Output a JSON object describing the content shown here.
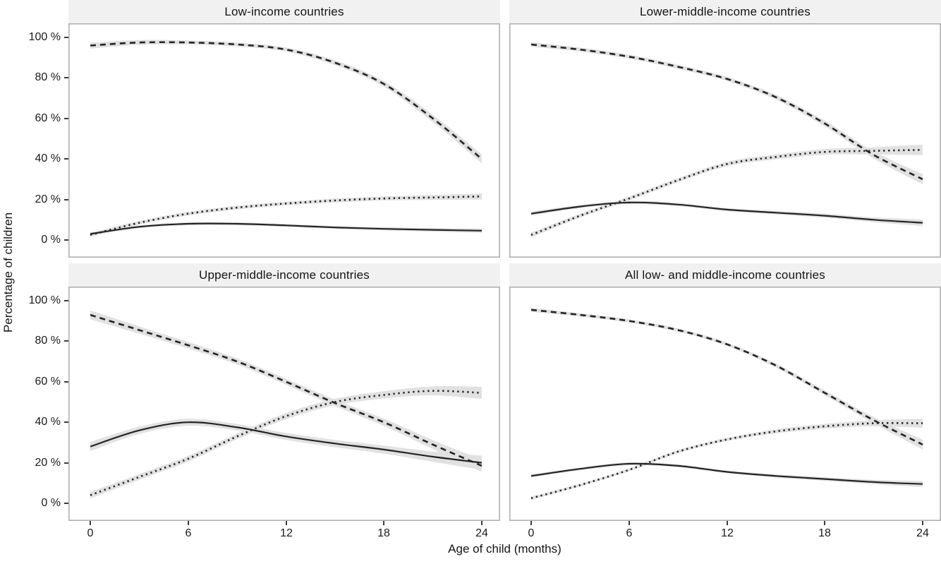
{
  "figure": {
    "y_axis_title": "Percentage of children",
    "x_axis_title": "Age of child (months)",
    "y_tick_labels": [
      "100 %",
      "80 %",
      "60 %",
      "40 %",
      "20 %",
      "0 %"
    ],
    "y_tick_values": [
      100,
      80,
      60,
      40,
      20,
      0
    ],
    "x_tick_labels": [
      "0",
      "6",
      "12",
      "18",
      "24"
    ],
    "x_tick_values": [
      0,
      6,
      12,
      18,
      24
    ]
  },
  "colors": {
    "line": "#242424",
    "confidence_band": "#e1e1e1",
    "strip_background": "#f1f1f1",
    "panel_border": "#b0b0b0",
    "tick": "#3a3a3a"
  },
  "chart_data": [
    {
      "type": "line",
      "title": "Low-income countries",
      "xlabel": "Age of child (months)",
      "ylabel": "Percentage of children",
      "ylim": [
        0,
        100
      ],
      "xlim": [
        0,
        24
      ],
      "grid": "off",
      "legend": "none",
      "x": [
        0,
        3,
        6,
        9,
        12,
        15,
        18,
        21,
        24
      ],
      "series": [
        {
          "name": "dashed-line",
          "style": "dashed",
          "values": [
            96,
            97.5,
            97.5,
            96.5,
            94,
            87.5,
            77,
            60,
            40
          ],
          "ci_halfwidth": [
            1.5,
            1.2,
            1.0,
            1.0,
            1.0,
            1.2,
            1.4,
            1.8,
            2.2
          ]
        },
        {
          "name": "dotted-line",
          "style": "dotted",
          "values": [
            2.5,
            8.5,
            13,
            16,
            18,
            19.5,
            20.5,
            21,
            21.5
          ],
          "ci_halfwidth": [
            1.0,
            0.9,
            0.9,
            0.9,
            0.9,
            1.0,
            1.0,
            1.2,
            1.5
          ]
        },
        {
          "name": "solid-line",
          "style": "solid",
          "values": [
            3,
            6.5,
            8,
            8,
            7.2,
            6.2,
            5.5,
            5,
            4.6
          ],
          "ci_halfwidth": [
            0.8,
            0.7,
            0.7,
            0.7,
            0.7,
            0.7,
            0.8,
            0.9,
            1.1
          ]
        }
      ]
    },
    {
      "type": "line",
      "title": "Lower-middle-income countries",
      "xlabel": "Age of child (months)",
      "ylabel": "Percentage of children",
      "ylim": [
        0,
        100
      ],
      "xlim": [
        0,
        24
      ],
      "grid": "off",
      "legend": "none",
      "x": [
        0,
        3,
        6,
        9,
        12,
        15,
        18,
        21,
        24
      ],
      "series": [
        {
          "name": "dashed-line",
          "style": "dashed",
          "values": [
            96.5,
            94,
            90.5,
            85.5,
            79.5,
            70.5,
            57.5,
            42,
            30
          ],
          "ci_halfwidth": [
            1.2,
            1.0,
            1.0,
            1.0,
            1.0,
            1.2,
            1.4,
            1.8,
            2.5
          ]
        },
        {
          "name": "dotted-line",
          "style": "dotted",
          "values": [
            2.5,
            12,
            20.5,
            29.5,
            37.5,
            41,
            43.5,
            44,
            44.5
          ],
          "ci_halfwidth": [
            1.2,
            1.0,
            1.0,
            1.0,
            1.1,
            1.2,
            1.4,
            1.8,
            2.6
          ]
        },
        {
          "name": "solid-line",
          "style": "solid",
          "values": [
            13,
            16.5,
            18.5,
            17.5,
            15,
            13.5,
            12,
            10,
            8.5
          ],
          "ci_halfwidth": [
            1.0,
            0.8,
            0.8,
            0.8,
            0.8,
            0.9,
            1.0,
            1.2,
            1.6
          ]
        }
      ]
    },
    {
      "type": "line",
      "title": "Upper-middle-income countries",
      "xlabel": "Age of child (months)",
      "ylabel": "Percentage of children",
      "ylim": [
        0,
        100
      ],
      "xlim": [
        0,
        24
      ],
      "grid": "off",
      "legend": "none",
      "x": [
        0,
        3,
        6,
        9,
        12,
        15,
        18,
        21,
        24
      ],
      "series": [
        {
          "name": "dashed-line",
          "style": "dashed",
          "values": [
            93,
            85.5,
            78,
            70,
            60,
            49.5,
            40,
            29,
            18.5
          ],
          "ci_halfwidth": [
            2.2,
            1.8,
            1.6,
            1.5,
            1.5,
            1.6,
            1.8,
            2.2,
            3.0
          ]
        },
        {
          "name": "dotted-line",
          "style": "dotted",
          "values": [
            4,
            13,
            22,
            33,
            43,
            50,
            53.5,
            55.5,
            54.5
          ],
          "ci_halfwidth": [
            1.6,
            1.4,
            1.4,
            1.4,
            1.5,
            1.6,
            1.8,
            2.2,
            3.0
          ]
        },
        {
          "name": "solid-line",
          "style": "solid",
          "values": [
            28,
            36,
            40,
            37.5,
            33,
            29.5,
            26.5,
            23,
            20
          ],
          "ci_halfwidth": [
            2.2,
            1.8,
            1.7,
            1.6,
            1.7,
            1.8,
            2.0,
            2.5,
            3.5
          ]
        }
      ]
    },
    {
      "type": "line",
      "title": "All low- and middle-income countries",
      "xlabel": "Age of child (months)",
      "ylabel": "Percentage of children",
      "ylim": [
        0,
        100
      ],
      "xlim": [
        0,
        24
      ],
      "grid": "off",
      "legend": "none",
      "x": [
        0,
        3,
        6,
        9,
        12,
        15,
        18,
        21,
        24
      ],
      "series": [
        {
          "name": "dashed-line",
          "style": "dashed",
          "values": [
            95.5,
            93,
            90,
            85.5,
            78.5,
            68,
            54.5,
            41,
            29
          ],
          "ci_halfwidth": [
            1.0,
            0.8,
            0.8,
            0.8,
            0.8,
            1.0,
            1.2,
            1.6,
            2.4
          ]
        },
        {
          "name": "dotted-line",
          "style": "dotted",
          "values": [
            2.5,
            9,
            16.5,
            25.5,
            31.5,
            35.5,
            38,
            39.5,
            39.5
          ],
          "ci_halfwidth": [
            0.8,
            0.7,
            0.7,
            0.8,
            0.8,
            1.0,
            1.2,
            1.5,
            2.2
          ]
        },
        {
          "name": "solid-line",
          "style": "solid",
          "values": [
            13.5,
            17,
            19.5,
            18.5,
            15.5,
            13.5,
            12,
            10.5,
            9.5
          ],
          "ci_halfwidth": [
            0.8,
            0.7,
            0.7,
            0.7,
            0.7,
            0.8,
            0.9,
            1.1,
            1.5
          ]
        }
      ]
    }
  ]
}
